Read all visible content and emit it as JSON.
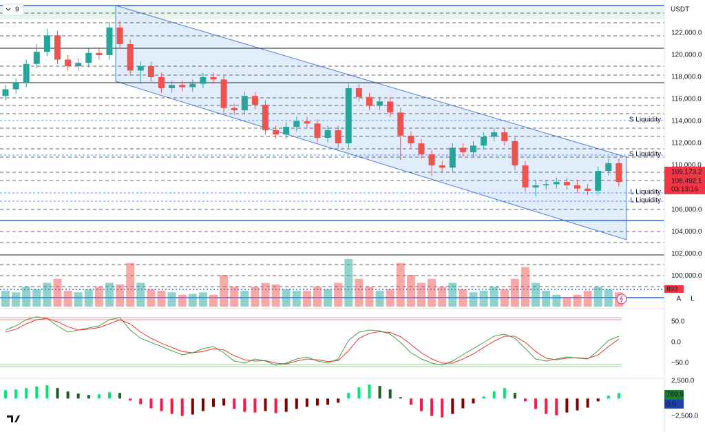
{
  "header": {
    "interval": "9",
    "currency": "USDT",
    "buttons": [
      "A",
      "L"
    ]
  },
  "chart_data": [
    {
      "type": "candlestick",
      "open": [
        116300,
        116900,
        117500,
        119200,
        120300,
        121800,
        119600,
        119000,
        119300,
        120200,
        120000,
        122500,
        121000,
        118600,
        119000,
        118000,
        117000,
        117300,
        117100,
        117400,
        118000,
        117800,
        115200,
        115000,
        116300,
        115500,
        113200,
        112800,
        113500,
        114000,
        113800,
        112500,
        113200,
        112000,
        117000,
        116200,
        115400,
        115800,
        114800,
        112700,
        112000,
        111000,
        110000,
        109800,
        111600,
        111200,
        111800,
        112600,
        113000,
        112200,
        110000,
        108000,
        108200,
        108300,
        108500,
        108200,
        107900,
        107700,
        109500,
        110200
      ],
      "high": [
        117300,
        117900,
        119600,
        121000,
        122400,
        122200,
        120000,
        119700,
        120600,
        120700,
        123000,
        123100,
        121400,
        119400,
        119400,
        118400,
        117700,
        117700,
        117800,
        118400,
        118400,
        118200,
        115600,
        116700,
        116700,
        115900,
        113600,
        113900,
        114400,
        114400,
        114200,
        113600,
        113600,
        117400,
        117400,
        116600,
        116200,
        116200,
        115200,
        113100,
        112400,
        111400,
        110400,
        112000,
        112000,
        112200,
        113000,
        113400,
        113400,
        112600,
        110400,
        108600,
        108700,
        108900,
        108900,
        108600,
        108300,
        109900,
        110600,
        110600
      ],
      "low": [
        115900,
        116500,
        117100,
        118800,
        119900,
        119200,
        118600,
        118600,
        118900,
        119600,
        119600,
        120600,
        118200,
        117400,
        117600,
        116600,
        116600,
        116700,
        116700,
        117000,
        117400,
        114800,
        114600,
        114600,
        115100,
        112800,
        112400,
        112400,
        113100,
        113400,
        112100,
        112100,
        111600,
        111600,
        115800,
        115000,
        115000,
        114400,
        110500,
        111600,
        110600,
        109000,
        109400,
        109400,
        110800,
        110800,
        111400,
        112200,
        111800,
        109600,
        107600,
        107200,
        107800,
        107900,
        107800,
        107500,
        107300,
        107300,
        109100,
        108100
      ],
      "close": [
        116900,
        117500,
        119200,
        120300,
        121800,
        119600,
        119000,
        119300,
        120200,
        120000,
        122500,
        121000,
        118600,
        119000,
        118000,
        117000,
        117300,
        117100,
        117400,
        118000,
        117800,
        115200,
        115000,
        116300,
        115500,
        113200,
        112800,
        113500,
        114000,
        113800,
        112500,
        113200,
        112000,
        117000,
        116200,
        115400,
        115800,
        114800,
        112700,
        112000,
        111000,
        110000,
        109800,
        111600,
        111200,
        111800,
        112600,
        113000,
        112200,
        110000,
        108000,
        108200,
        108300,
        108500,
        108200,
        107900,
        107700,
        109500,
        110200,
        108492.1
      ],
      "up_color": "#26a69a",
      "down_color": "#ef5350",
      "ylim": [
        97200,
        125000
      ],
      "yticks": [
        {
          "value": 100000,
          "label": "100,000.0"
        },
        {
          "value": 102000,
          "label": "102,000.0"
        },
        {
          "value": 104000,
          "label": "104,000.0"
        },
        {
          "value": 106000,
          "label": "106,000.0"
        },
        {
          "value": 110000,
          "label": "110,000.0"
        },
        {
          "value": 112000,
          "label": "112,000.0"
        },
        {
          "value": 114000,
          "label": "114,000.0"
        },
        {
          "value": 116000,
          "label": "116,000.0"
        },
        {
          "value": 118000,
          "label": "118,000.0"
        },
        {
          "value": 120000,
          "label": "120,000.0"
        },
        {
          "value": 122000,
          "label": "122,000.0"
        }
      ],
      "price_labels": [
        "109,173.2",
        "108,492.1",
        "03:13:16"
      ],
      "annotations": [
        "S Liquidity",
        "S Liquidity",
        "L Liquidity",
        "L Liquidity"
      ]
    },
    {
      "type": "bar",
      "values": [
        20,
        18,
        25,
        22,
        30,
        35,
        20,
        18,
        22,
        25,
        30,
        28,
        55,
        30,
        22,
        20,
        18,
        15,
        16,
        18,
        15,
        40,
        25,
        20,
        25,
        30,
        28,
        22,
        20,
        20,
        25,
        22,
        30,
        60,
        35,
        25,
        20,
        22,
        55,
        40,
        30,
        35,
        25,
        30,
        22,
        18,
        20,
        25,
        22,
        35,
        50,
        30,
        20,
        15,
        12,
        15,
        20,
        25,
        22,
        18
      ],
      "ylim": [
        0,
        100
      ],
      "last_label": "893"
    },
    {
      "type": "line",
      "series": [
        {
          "color": "#43a047",
          "values": [
            30,
            40,
            55,
            62,
            58,
            40,
            25,
            30,
            35,
            40,
            55,
            60,
            30,
            10,
            0,
            -10,
            -20,
            -30,
            -25,
            -15,
            -10,
            -25,
            -45,
            -50,
            -40,
            -45,
            -55,
            -50,
            -40,
            -35,
            -45,
            -50,
            -40,
            5,
            25,
            30,
            28,
            20,
            0,
            -25,
            -40,
            -50,
            -55,
            -45,
            -30,
            -15,
            0,
            15,
            20,
            10,
            -15,
            -40,
            -45,
            -40,
            -35,
            -38,
            -40,
            -20,
            5,
            15
          ]
        },
        {
          "color": "#e53935",
          "values": [
            25,
            32,
            45,
            55,
            58,
            50,
            38,
            30,
            32,
            36,
            45,
            55,
            45,
            25,
            10,
            -2,
            -12,
            -22,
            -25,
            -22,
            -15,
            -18,
            -32,
            -42,
            -45,
            -44,
            -50,
            -52,
            -45,
            -40,
            -42,
            -46,
            -44,
            -20,
            10,
            22,
            26,
            24,
            14,
            -5,
            -25,
            -40,
            -50,
            -50,
            -40,
            -28,
            -12,
            3,
            15,
            15,
            0,
            -22,
            -38,
            -42,
            -38,
            -37,
            -39,
            -30,
            -10,
            8
          ]
        }
      ],
      "ylim": [
        -80,
        70
      ],
      "yticks": [
        {
          "value": 50,
          "label": "50.0"
        },
        {
          "value": 0,
          "label": "0.0"
        },
        {
          "value": -50,
          "label": "−50.0"
        }
      ]
    },
    {
      "type": "bar",
      "values": [
        1200,
        1300,
        1500,
        1700,
        1900,
        1500,
        1000,
        700,
        500,
        600,
        900,
        800,
        -300,
        -800,
        -1400,
        -1800,
        -2200,
        -2500,
        -2300,
        -1800,
        -1200,
        -1000,
        -1500,
        -1900,
        -2000,
        -1800,
        -2100,
        -1900,
        -1500,
        -1200,
        -1000,
        -900,
        -600,
        800,
        1600,
        2000,
        1800,
        1300,
        200,
        -900,
        -1800,
        -2500,
        -2700,
        -2200,
        -1400,
        -700,
        300,
        1000,
        1500,
        800,
        -400,
        -1500,
        -2200,
        -2400,
        -2000,
        -1700,
        -1300,
        -400,
        400,
        769.9
      ],
      "ylim": [
        -4100,
        2600
      ],
      "yticks": [
        {
          "value": 2500,
          "label": "2,500.0"
        },
        {
          "value": -2500,
          "label": "−2,500.0"
        }
      ],
      "last_labels": [
        "769.9",
        "0.0"
      ]
    }
  ]
}
